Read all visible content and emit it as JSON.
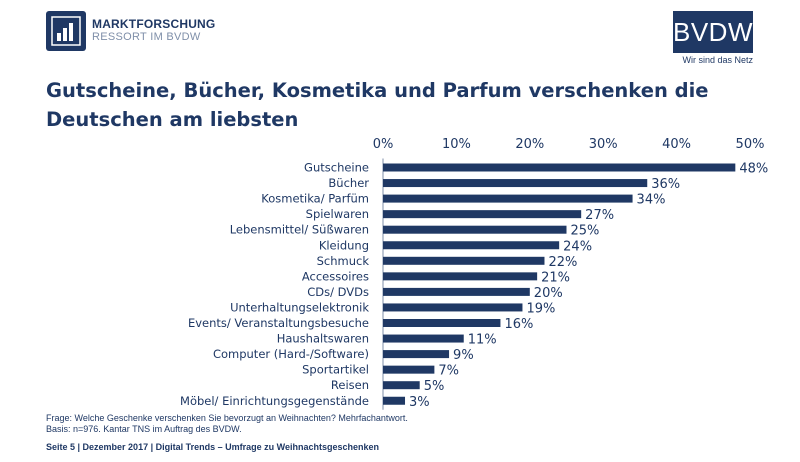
{
  "brand": {
    "left_line1": "MARKTFORSCHUNG",
    "left_line2": "RESSORT IM BVDW",
    "right_name": "BVDW",
    "right_tagline": "Wir sind das Netz",
    "color": "#1f3864"
  },
  "chart_data": {
    "type": "bar",
    "orientation": "horizontal",
    "title": "Gutscheine, Bücher, Kosmetika und Parfum verschenken die Deutschen am liebsten",
    "categories": [
      "Gutscheine",
      "Bücher",
      "Kosmetika/ Parfüm",
      "Spielwaren",
      "Lebensmittel/ Süßwaren",
      "Kleidung",
      "Schmuck",
      "Accessoires",
      "CDs/ DVDs",
      "Unterhaltungselektronik",
      "Events/ Veranstaltungsbesuche",
      "Haushaltswaren",
      "Computer (Hard-/Software)",
      "Sportartikel",
      "Reisen",
      "Möbel/ Einrichtungsgegenstände"
    ],
    "values": [
      48,
      36,
      34,
      27,
      25,
      24,
      22,
      21,
      20,
      19,
      16,
      11,
      9,
      7,
      5,
      3
    ],
    "value_labels": [
      "48%",
      "36%",
      "34%",
      "27%",
      "25%",
      "24%",
      "22%",
      "21%",
      "20%",
      "19%",
      "16%",
      "11%",
      "9%",
      "7%",
      "5%",
      "3%"
    ],
    "xlim": [
      0,
      50
    ],
    "x_ticks": [
      0,
      10,
      20,
      30,
      40,
      50
    ],
    "x_tick_labels": [
      "0%",
      "10%",
      "20%",
      "30%",
      "40%",
      "50%"
    ],
    "axis_position": "top",
    "grid": false,
    "bar_color": "#1f3864"
  },
  "footnote": {
    "line1": "Frage: Welche Geschenke verschenken Sie bevorzugt an Weihnachten? Mehrfachantwort.",
    "line2": "Basis: n=976. Kantar TNS im Auftrag des BVDW."
  },
  "footer": "Seite 5 | Dezember 2017 | Digital Trends – Umfrage zu Weihnachtsgeschenken"
}
